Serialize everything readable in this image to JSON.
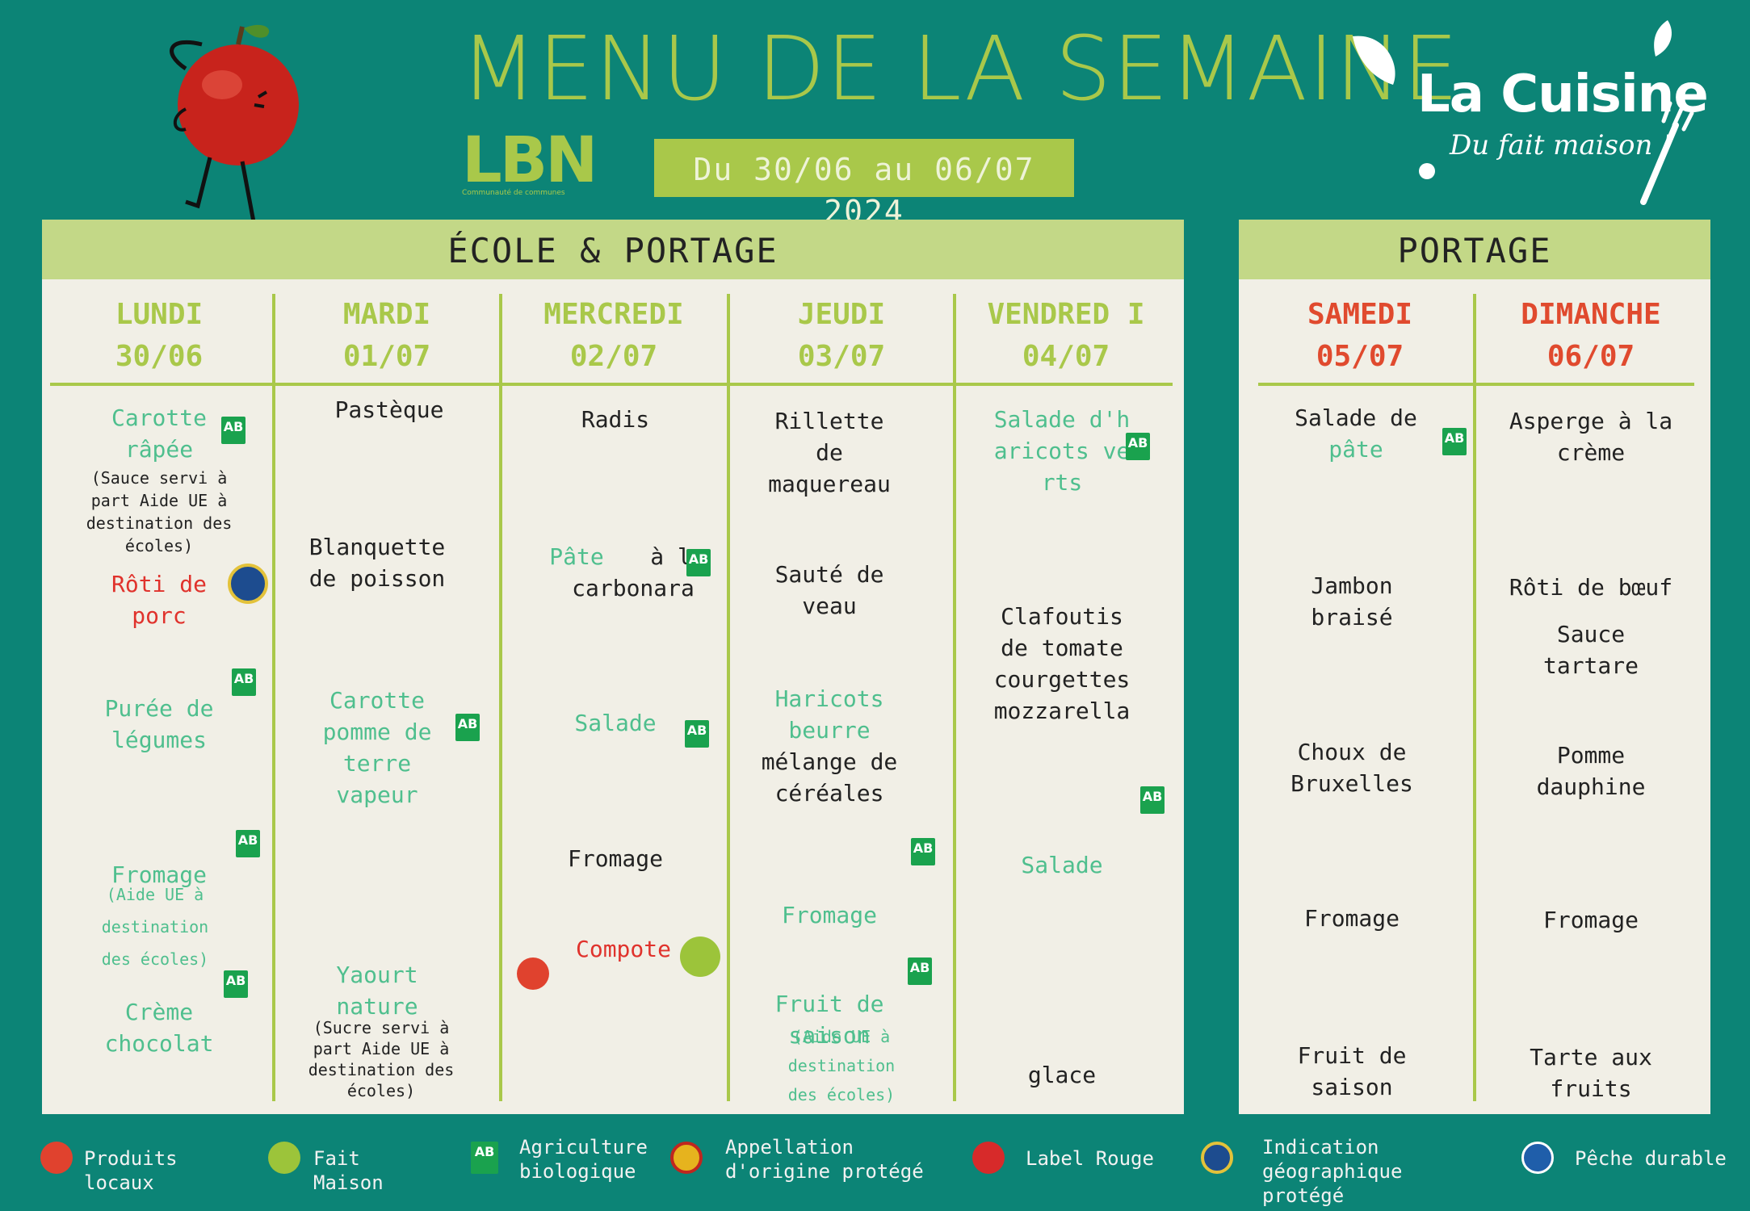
{
  "header": {
    "title": "MENU DE LA SEMAINE",
    "date_range": "Du 30/06  au 06/07 2024",
    "lbn_logo": "LBN",
    "lbn_tagline": "Communauté de communes",
    "brand_title": "La Cuisine",
    "brand_sub": "Du fait maison !"
  },
  "sections": {
    "school": "ÉCOLE & PORTAGE",
    "portage": "PORTAGE"
  },
  "days": [
    {
      "name": "LUNDI",
      "date": "30/06"
    },
    {
      "name": "MARDI",
      "date": "01/07"
    },
    {
      "name": "MERCREDI",
      "date": "02/07"
    },
    {
      "name": "JEUDI",
      "date": "03/07"
    },
    {
      "name": "VENDRED I",
      "date": "04/07"
    },
    {
      "name": "SAMEDI",
      "date": "05/07"
    },
    {
      "name": "DIMANCHE",
      "date": "06/07"
    }
  ],
  "menu": {
    "lundi": {
      "entree": "Carotte râpée",
      "entree_note": "(Sauce servi à part Aide UE à destination des écoles)",
      "plat": "Rôti de porc",
      "accomp": "Purée de légumes",
      "fromage": "Fromage",
      "fromage_note": "(Aide UE à destination des écoles)",
      "dessert": "Crème chocolat"
    },
    "mardi": {
      "entree": "Pastèque",
      "plat": "Blanquette de poisson",
      "accomp": "Carotte pomme de terre vapeur",
      "dessert": "Yaourt nature",
      "dessert_note": "(Sucre servi à part Aide UE à destination des écoles)"
    },
    "mercredi": {
      "entree": "Radis",
      "plat_a": "Pâte",
      "plat_b": "à la carbonara",
      "accomp": "Salade",
      "fromage": "Fromage",
      "dessert": "Compote"
    },
    "jeudi": {
      "entree": "Rillette de maquereau",
      "plat": "Sauté de veau",
      "accomp_a": "Haricots beurre",
      "accomp_b": "mélange de céréales",
      "fromage": "Fromage",
      "dessert": "Fruit de saison",
      "dessert_note": "(Aide UE à destination des écoles)"
    },
    "vendredi": {
      "entree": "Salade d'haricots verts",
      "plat": "Clafoutis de tomate courgettes mozzarella",
      "accomp": "Salade",
      "dessert": "glace"
    },
    "samedi": {
      "entree_a": "Salade de",
      "entree_b": "pâte",
      "plat": "Jambon braisé",
      "accomp": "Choux de Bruxelles",
      "fromage": "Fromage",
      "dessert": "Fruit de saison"
    },
    "dimanche": {
      "entree": "Asperge à la crème",
      "plat": "Rôti de bœuf",
      "sauce": "Sauce tartare",
      "accomp": "Pomme dauphine",
      "fromage": "Fromage",
      "dessert": "Tarte aux fruits"
    }
  },
  "badge_text": "AB",
  "legend": [
    {
      "icon": "map-pin-icon",
      "label": "Produits locaux"
    },
    {
      "icon": "leaf-icon",
      "label": "Fait Maison"
    },
    {
      "icon": "ab-organic-icon",
      "label": "Agriculture biologique"
    },
    {
      "icon": "aop-seal-icon",
      "label": "Appellation d'origine protégé"
    },
    {
      "icon": "label-rouge-icon",
      "label": "Label Rouge"
    },
    {
      "icon": "igp-seal-icon",
      "label": "Indication géographique protégé"
    },
    {
      "icon": "fish-seal-icon",
      "label": "Pêche durable"
    }
  ],
  "colors": {
    "background": "#0c8476",
    "accent_green": "#a9c84a",
    "organic_text": "#4fbf8e",
    "weekend_red": "#e04a2e",
    "paper": "#f1efe6"
  }
}
